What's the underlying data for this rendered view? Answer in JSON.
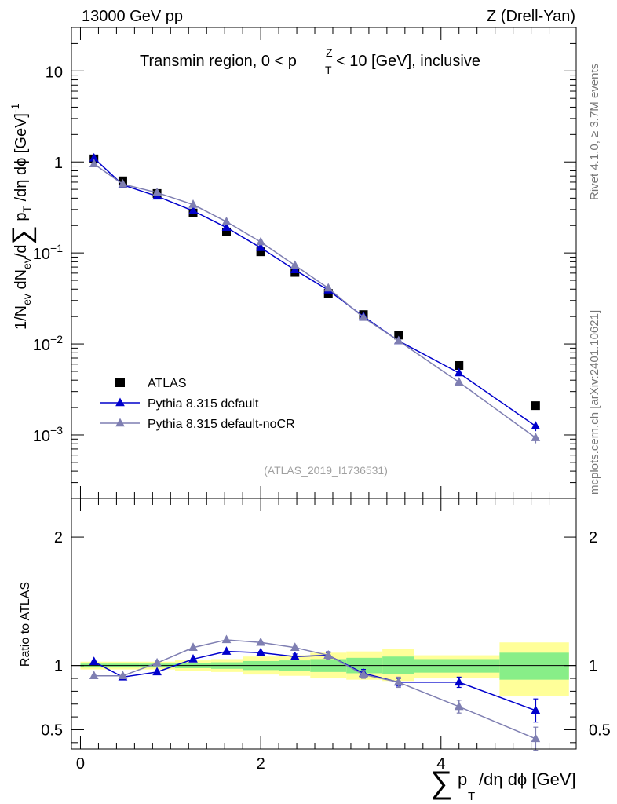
{
  "header": {
    "left": "13000 GeV pp",
    "right": "Z (Drell-Yan)"
  },
  "side_text": {
    "rivet": "Rivet 4.1.0, ≥ 3.7M events",
    "mcplots": "mcplots.cern.ch [arXiv:2401.10621]"
  },
  "chart_data": [
    {
      "type": "scatter",
      "panel": "main",
      "title": "Transmin region, 0 < p_T^Z < 10 [GeV], inclusive",
      "ylabel": "1/N_ev dN_ev/d∑p_T/dη dφ [GeV]^-1",
      "yscale": "log",
      "ylim": [
        0.0002,
        30
      ],
      "xlim": [
        -0.1,
        5.5
      ],
      "yticks": [
        {
          "v": 10,
          "m": "10",
          "e": ""
        },
        {
          "v": 1,
          "m": "1",
          "e": ""
        },
        {
          "v": 0.1,
          "m": "10",
          "e": "−1"
        },
        {
          "v": 0.01,
          "m": "10",
          "e": "−2"
        },
        {
          "v": 0.001,
          "m": "10",
          "e": "−3"
        }
      ],
      "legend": {
        "position": "bottom-left",
        "entries": [
          "ATLAS",
          "Pythia 8.315 default",
          "Pythia 8.315 default-noCR"
        ]
      },
      "watermark": "(ATLAS_2019_I1736531)",
      "series": [
        {
          "name": "ATLAS",
          "color": "#000000",
          "marker": "square",
          "x": [
            0.15,
            0.47,
            0.85,
            1.25,
            1.62,
            2.0,
            2.38,
            2.75,
            3.14,
            3.53,
            4.2,
            5.05
          ],
          "y": [
            1.08,
            0.62,
            0.45,
            0.275,
            0.17,
            0.103,
            0.061,
            0.036,
            0.021,
            0.0125,
            0.0058,
            0.0021
          ],
          "yerr": [
            0,
            0,
            0,
            0,
            0,
            0,
            0,
            0,
            0,
            0,
            0,
            0
          ]
        },
        {
          "name": "Pythia 8.315 default",
          "color": "#0000cc",
          "marker": "triangle",
          "x": [
            0.15,
            0.47,
            0.85,
            1.25,
            1.62,
            2.0,
            2.38,
            2.75,
            3.14,
            3.53,
            4.2,
            5.05
          ],
          "y": [
            1.1,
            0.56,
            0.42,
            0.29,
            0.19,
            0.114,
            0.065,
            0.039,
            0.02,
            0.0108,
            0.0048,
            0.00125
          ],
          "yerr": [
            0,
            0,
            0,
            0,
            0,
            0,
            0,
            0,
            0,
            0,
            0.0002,
            0.00015
          ]
        },
        {
          "name": "Pythia 8.315 default-noCR",
          "color": "#7f7fb2",
          "marker": "triangle",
          "x": [
            0.15,
            0.47,
            0.85,
            1.25,
            1.62,
            2.0,
            2.38,
            2.75,
            3.14,
            3.53,
            4.2,
            5.05
          ],
          "y": [
            0.95,
            0.57,
            0.46,
            0.34,
            0.22,
            0.132,
            0.073,
            0.041,
            0.0195,
            0.0108,
            0.0038,
            0.00093
          ],
          "yerr": [
            0,
            0,
            0,
            0,
            0,
            0,
            0,
            0,
            0,
            0,
            0.00015,
            0.00012
          ]
        }
      ]
    },
    {
      "type": "line",
      "panel": "ratio",
      "ylabel": "Ratio to ATLAS",
      "xlabel": "∑p_T/dη dφ [GeV]",
      "ylim": [
        0.35,
        2.3
      ],
      "xlim": [
        -0.1,
        5.5
      ],
      "yticks": [
        0.5,
        1,
        2
      ],
      "xticks": [
        0,
        2,
        4
      ],
      "bins": [
        {
          "lo": 0.0,
          "hi": 0.3,
          "y_lo": 0.97,
          "y_hi": 1.03,
          "g_lo": 0.985,
          "g_hi": 1.015
        },
        {
          "lo": 0.3,
          "hi": 0.65,
          "y_lo": 0.97,
          "y_hi": 1.03,
          "g_lo": 0.985,
          "g_hi": 1.015
        },
        {
          "lo": 0.65,
          "hi": 1.05,
          "y_lo": 0.97,
          "y_hi": 1.03,
          "g_lo": 0.985,
          "g_hi": 1.015
        },
        {
          "lo": 1.05,
          "hi": 1.45,
          "y_lo": 0.96,
          "y_hi": 1.04,
          "g_lo": 0.98,
          "g_hi": 1.02
        },
        {
          "lo": 1.45,
          "hi": 1.8,
          "y_lo": 0.95,
          "y_hi": 1.05,
          "g_lo": 0.975,
          "g_hi": 1.025
        },
        {
          "lo": 1.8,
          "hi": 2.2,
          "y_lo": 0.93,
          "y_hi": 1.07,
          "g_lo": 0.965,
          "g_hi": 1.035
        },
        {
          "lo": 2.2,
          "hi": 2.55,
          "y_lo": 0.92,
          "y_hi": 1.08,
          "g_lo": 0.96,
          "g_hi": 1.04
        },
        {
          "lo": 2.55,
          "hi": 2.95,
          "y_lo": 0.9,
          "y_hi": 1.1,
          "g_lo": 0.95,
          "g_hi": 1.05
        },
        {
          "lo": 2.95,
          "hi": 3.35,
          "y_lo": 0.89,
          "y_hi": 1.11,
          "g_lo": 0.94,
          "g_hi": 1.06
        },
        {
          "lo": 3.35,
          "hi": 3.7,
          "y_lo": 0.88,
          "y_hi": 1.13,
          "g_lo": 0.935,
          "g_hi": 1.07
        },
        {
          "lo": 3.7,
          "hi": 4.65,
          "y_lo": 0.9,
          "y_hi": 1.08,
          "g_lo": 0.945,
          "g_hi": 1.05
        },
        {
          "lo": 4.65,
          "hi": 5.42,
          "y_lo": 0.76,
          "y_hi": 1.18,
          "g_lo": 0.89,
          "g_hi": 1.1
        }
      ],
      "series": [
        {
          "name": "Pythia 8.315 default",
          "color": "#0000cc",
          "x": [
            0.15,
            0.47,
            0.85,
            1.25,
            1.62,
            2.0,
            2.38,
            2.75,
            3.14,
            3.53,
            4.2,
            5.05
          ],
          "y": [
            1.03,
            0.91,
            0.95,
            1.05,
            1.11,
            1.1,
            1.07,
            1.08,
            0.94,
            0.87,
            0.87,
            0.65
          ],
          "yerr": [
            0,
            0,
            0,
            0,
            0,
            0.01,
            0.02,
            0.02,
            0.03,
            0.03,
            0.04,
            0.09
          ]
        },
        {
          "name": "Pythia 8.315 default-noCR",
          "color": "#7f7fb2",
          "x": [
            0.15,
            0.47,
            0.85,
            1.25,
            1.62,
            2.0,
            2.38,
            2.75,
            3.14,
            3.53,
            4.2,
            5.05
          ],
          "y": [
            0.92,
            0.92,
            1.02,
            1.14,
            1.2,
            1.18,
            1.14,
            1.08,
            0.93,
            0.87,
            0.68,
            0.43
          ],
          "yerr": [
            0,
            0,
            0,
            0,
            0,
            0.01,
            0.02,
            0.03,
            0.03,
            0.04,
            0.05,
            0.09
          ]
        }
      ]
    }
  ]
}
